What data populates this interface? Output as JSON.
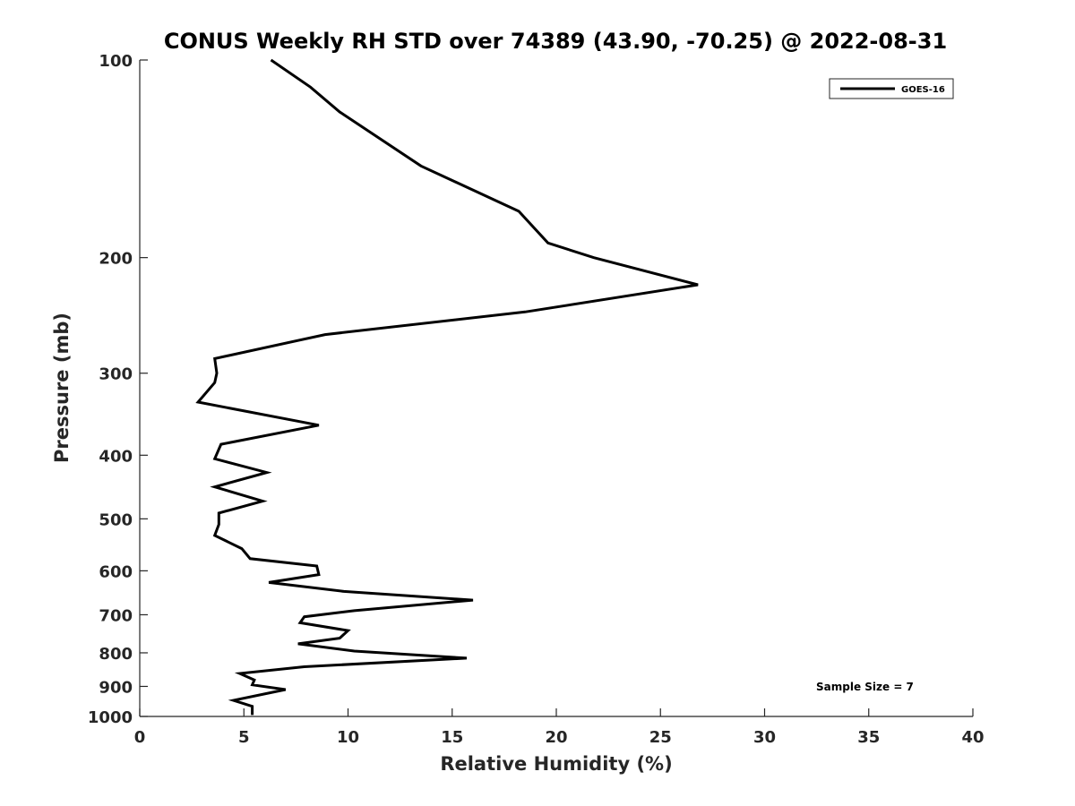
{
  "chart_data": {
    "type": "line",
    "title": "CONUS Weekly RH STD over 74389 (43.90, -70.25) @ 2022-08-31",
    "xlabel": "Relative Humidity (%)",
    "ylabel": "Pressure (mb)",
    "xlim": [
      0,
      40
    ],
    "ylim": [
      100,
      1000
    ],
    "y_scale": "log",
    "y_reversed": true,
    "x_ticks": [
      0,
      5,
      10,
      15,
      20,
      25,
      30,
      35,
      40
    ],
    "x_tick_labels": [
      "0",
      "5",
      "10",
      "15",
      "20",
      "25",
      "30",
      "35",
      "40"
    ],
    "y_ticks": [
      100,
      200,
      300,
      400,
      500,
      600,
      700,
      800,
      900,
      1000
    ],
    "y_tick_labels": [
      "100",
      "200",
      "300",
      "400",
      "500",
      "600",
      "700",
      "800",
      "900",
      "1000"
    ],
    "grid": false,
    "legend_position": "top-right",
    "annotation": "Sample Size = 7",
    "series": [
      {
        "name": "GOES-16",
        "color": "#000000",
        "x": [
          6.3,
          8.2,
          9.6,
          13.5,
          18.2,
          19.6,
          21.8,
          26.8,
          18.5,
          8.9,
          3.6,
          3.7,
          3.6,
          2.8,
          8.6,
          3.9,
          3.6,
          6.1,
          3.6,
          5.9,
          3.8,
          3.8,
          3.6,
          4.9,
          5.3,
          8.5,
          8.6,
          6.2,
          9.8,
          16.0,
          10.3,
          7.9,
          7.7,
          10.0,
          9.6,
          7.6,
          10.3,
          15.7,
          7.9,
          4.8,
          5.5,
          5.4,
          7.0,
          4.5,
          5.4,
          5.4
        ],
        "y": [
          100,
          110,
          120,
          145,
          170,
          190,
          200,
          220,
          242,
          262,
          285,
          300,
          310,
          332,
          360,
          385,
          405,
          425,
          447,
          470,
          490,
          510,
          530,
          555,
          575,
          590,
          608,
          625,
          645,
          665,
          690,
          705,
          720,
          740,
          760,
          775,
          795,
          815,
          840,
          860,
          880,
          895,
          910,
          945,
          965,
          995
        ]
      }
    ]
  }
}
